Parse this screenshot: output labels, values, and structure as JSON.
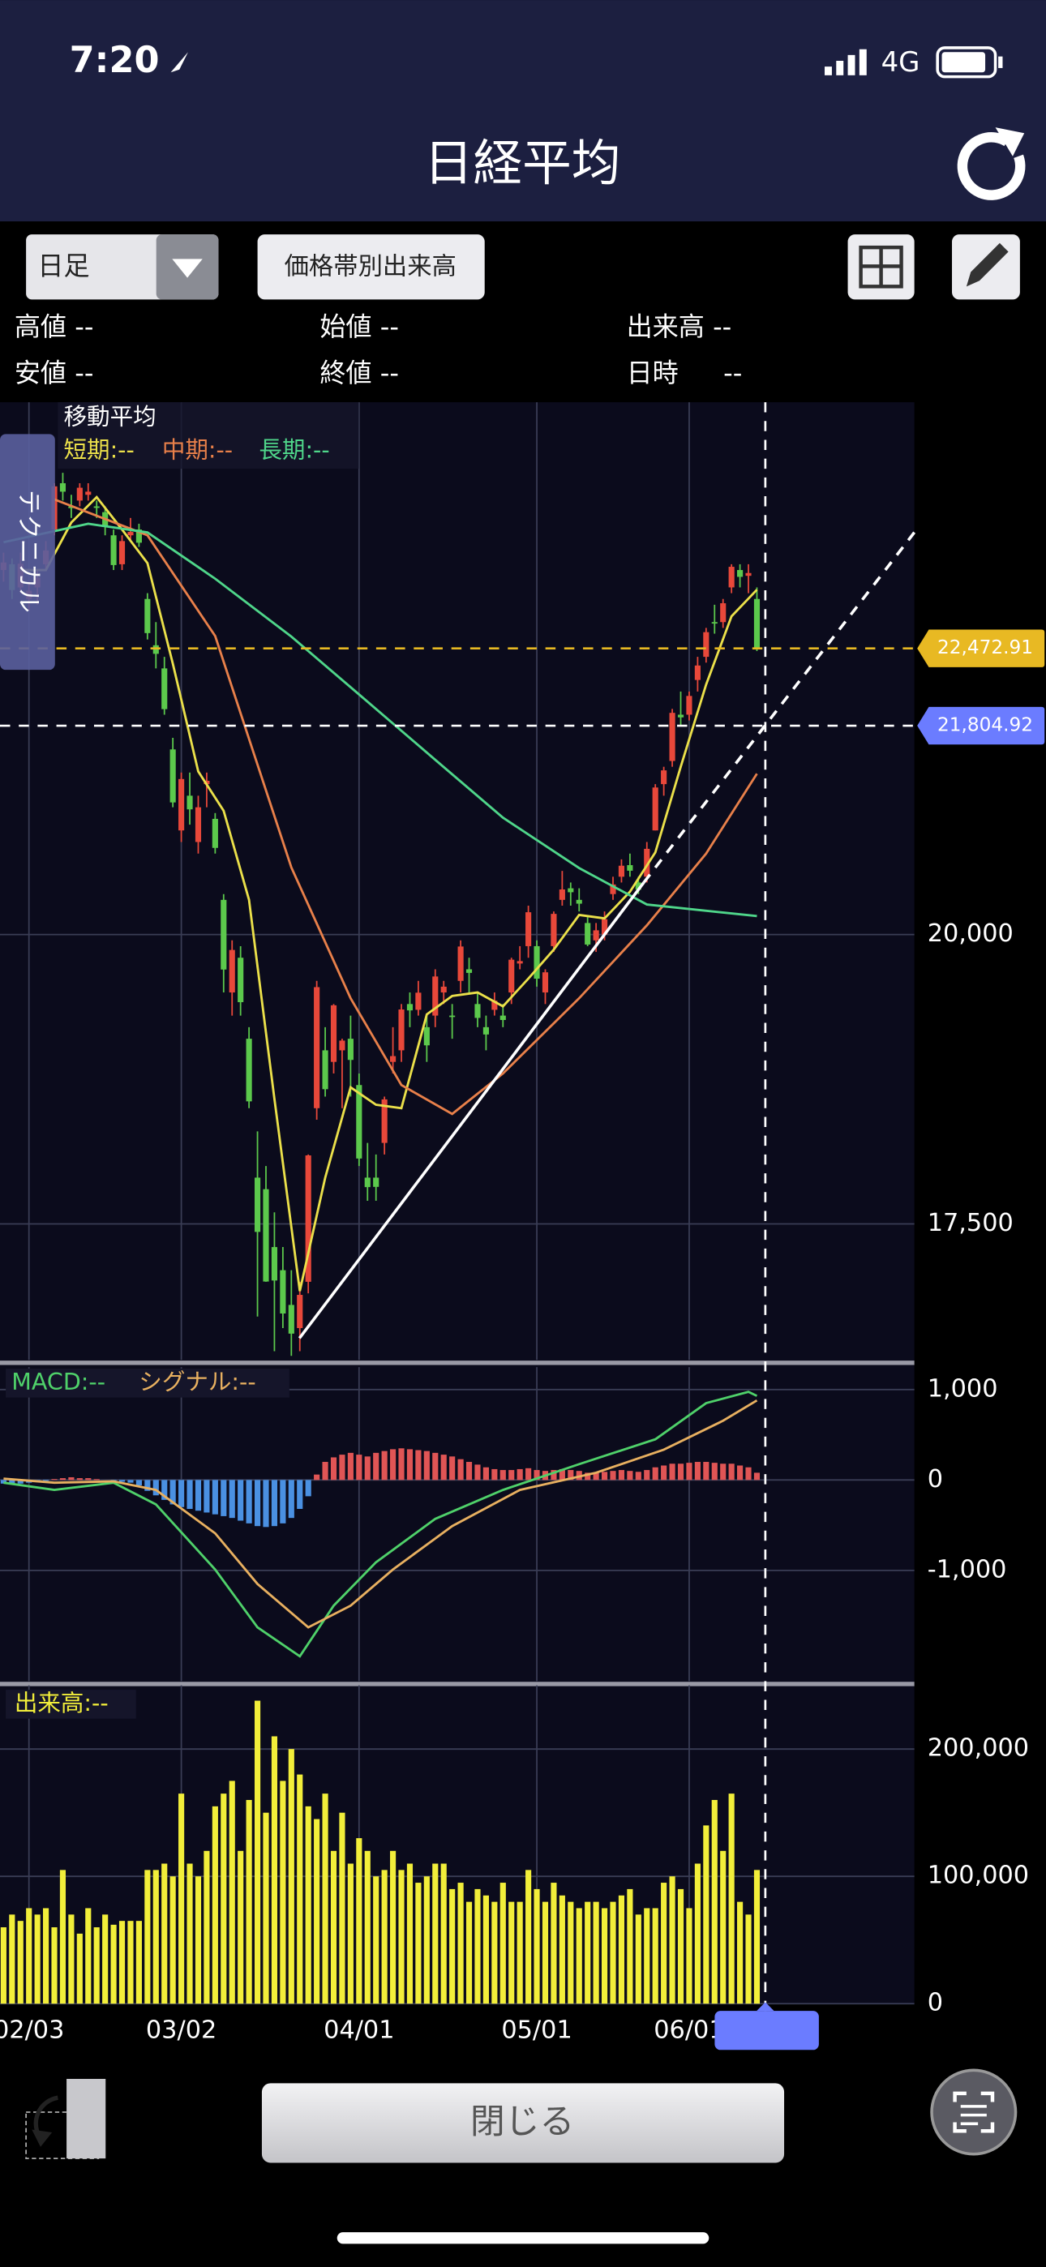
{
  "status": {
    "time": "7:20",
    "network": "4G"
  },
  "header": {
    "title": "日経平均"
  },
  "toolbar": {
    "period": "日足",
    "volume_profile": "価格帯別出来高"
  },
  "info": [
    "高値 --",
    "始値 --",
    "出来高 --",
    "安値 --",
    "終値 --"
  ],
  "datetime": {
    "label": "日時",
    "value": "--"
  },
  "side_tab": "テクニカル",
  "chart_data": [
    {
      "type": "candlestick",
      "title": "移動平均",
      "xlim": [
        -3.42,
        104.6
      ],
      "ylim": [
        16325,
        24600
      ],
      "yticks": [
        {
          "value": 20000,
          "label": "20,000"
        },
        {
          "value": 17500,
          "label": "17,500"
        }
      ],
      "grid": true,
      "up_color": "#e8483a",
      "down_color": "#5cc94c",
      "x": [
        -3,
        -2,
        -1,
        0,
        1,
        2,
        3,
        4,
        5,
        6,
        7,
        8,
        9,
        10,
        11,
        12,
        13,
        14,
        15,
        16,
        17,
        18,
        19,
        20,
        21,
        22,
        23,
        24,
        25,
        26,
        27,
        28,
        29,
        30,
        31,
        32,
        33,
        34,
        35,
        36,
        37,
        38,
        39,
        40,
        41,
        42,
        43,
        44,
        45,
        46,
        47,
        48,
        49,
        50,
        51,
        52,
        53,
        54,
        55,
        56,
        57,
        58,
        59,
        60,
        61,
        62,
        63,
        64,
        65,
        66,
        67,
        68,
        69,
        70,
        71,
        72,
        73,
        74,
        75,
        76,
        77,
        78,
        79,
        80,
        81,
        82,
        83,
        84,
        85,
        86
      ],
      "open": [
        23150,
        23200,
        23000,
        22900,
        23000,
        23200,
        23500,
        23900,
        23700,
        23750,
        23800,
        23700,
        23650,
        23450,
        23200,
        23450,
        23500,
        22900,
        22500,
        22300,
        21600,
        20900,
        21200,
        20800,
        21300,
        21000,
        20300,
        19500,
        19800,
        19100,
        17900,
        17800,
        17300,
        17100,
        16800,
        16600,
        17000,
        18500,
        19000,
        18900,
        19000,
        19100,
        18700,
        17900,
        17900,
        18200,
        18900,
        19000,
        19400,
        19350,
        19200,
        19300,
        19500,
        19300,
        19600,
        19700,
        19400,
        19200,
        19350,
        19300,
        19500,
        19750,
        19900,
        19900,
        19500,
        19900,
        20300,
        20400,
        20300,
        20100,
        19950,
        20000,
        20350,
        20500,
        20600,
        20450,
        20500,
        20900,
        21300,
        21500,
        21900,
        21900,
        22200,
        22400,
        22700,
        22700,
        23000,
        23150,
        23100,
        22900
      ],
      "high": [
        23300,
        23250,
        23300,
        23050,
        23150,
        23400,
        23900,
        23990,
        23800,
        23900,
        23900,
        23750,
        23700,
        23500,
        23450,
        23600,
        23550,
        22950,
        22700,
        22400,
        21700,
        21400,
        21400,
        21200,
        21400,
        21050,
        20350,
        19950,
        19900,
        19200,
        18300,
        18000,
        17600,
        17300,
        17100,
        17000,
        18100,
        19600,
        19200,
        19400,
        19100,
        19300,
        18800,
        18200,
        18100,
        18600,
        19200,
        19400,
        19500,
        19600,
        19300,
        19700,
        19600,
        19400,
        19950,
        19800,
        19500,
        19300,
        19500,
        19400,
        19800,
        19900,
        20250,
        19950,
        19700,
        20200,
        20550,
        20450,
        20400,
        20150,
        20100,
        20200,
        20500,
        20650,
        20700,
        20500,
        20800,
        21300,
        21450,
        21950,
        22100,
        22100,
        22400,
        22650,
        22850,
        22900,
        23200,
        23200,
        23200,
        23000
      ],
      "low": [
        23050,
        22900,
        22950,
        22800,
        22850,
        23150,
        23450,
        23750,
        23600,
        23700,
        23750,
        23600,
        23450,
        23150,
        23150,
        23400,
        23350,
        22550,
        22300,
        21900,
        21100,
        20800,
        20950,
        20700,
        21100,
        20700,
        19500,
        19300,
        19300,
        18500,
        16700,
        17000,
        16400,
        16600,
        16360,
        16400,
        16900,
        18400,
        18600,
        18800,
        18500,
        18600,
        18000,
        17700,
        17700,
        18100,
        18800,
        18900,
        19200,
        19300,
        18900,
        19200,
        19400,
        19100,
        19500,
        19500,
        19200,
        19000,
        19300,
        19200,
        19400,
        19700,
        19800,
        19550,
        19400,
        19850,
        20250,
        20250,
        20200,
        19900,
        19850,
        19950,
        20300,
        20450,
        20500,
        20350,
        20450,
        20900,
        21200,
        21450,
        21800,
        21850,
        22100,
        22350,
        22600,
        22650,
        22950,
        23000,
        22950,
        22450
      ],
      "close": [
        23215,
        22977,
        23205,
        22971,
        23084,
        23319,
        23873,
        23827,
        23685,
        23861,
        23827,
        23687,
        23523,
        23193,
        23400,
        23479,
        23386,
        22605,
        22426,
        21948,
        21142,
        21344,
        21082,
        21100,
        21329,
        20749,
        19698,
        19867,
        19416,
        18559,
        17431,
        17002,
        17011,
        16726,
        16552,
        16887,
        18092,
        19546,
        18664,
        19389,
        19084,
        18917,
        18065,
        17818,
        17820,
        18576,
        18950,
        19353,
        19345,
        19498,
        19043,
        19638,
        19550,
        19290,
        19897,
        19669,
        19280,
        19137,
        19429,
        19262,
        19783,
        19771,
        20193,
        19619,
        19674,
        20179,
        20390,
        20366,
        20267,
        19914,
        20037,
        20133,
        20433,
        20595,
        20552,
        20388,
        20741,
        21271,
        21419,
        21916,
        21877,
        22062,
        22325,
        22613,
        22695,
        22863,
        23178,
        23091,
        23124,
        22472.91
      ],
      "series": [
        {
          "name": "短期:--",
          "color": "#ebe04a",
          "x": [
            -1,
            2,
            5,
            8,
            11,
            14,
            17,
            20,
            23,
            26,
            29,
            32,
            35,
            38,
            41,
            44,
            47,
            50,
            53,
            56,
            59,
            62,
            65,
            68,
            71,
            74,
            77,
            80,
            83,
            86
          ],
          "values": [
            23150,
            23150,
            23560,
            23780,
            23500,
            23210,
            22340,
            21410,
            21070,
            20300,
            18580,
            16920,
            17900,
            18680,
            18530,
            18500,
            19310,
            19470,
            19500,
            19380,
            19620,
            19870,
            20170,
            20140,
            20370,
            20710,
            21450,
            22160,
            22750,
            22980
          ]
        },
        {
          "name": "中期:--",
          "color": "#e8804a",
          "x": [
            3,
            14,
            22,
            31,
            38,
            44,
            50,
            56,
            65,
            73,
            80,
            86
          ],
          "values": [
            23760,
            23450,
            22580,
            20580,
            19450,
            18700,
            18450,
            18800,
            19450,
            20080,
            20700,
            21390
          ]
        },
        {
          "name": "長期:--",
          "color": "#4fd68a",
          "x": [
            -3,
            7,
            14,
            22,
            31,
            39,
            48,
            56,
            65,
            73,
            86
          ],
          "values": [
            23390,
            23550,
            23475,
            23075,
            22575,
            22075,
            21510,
            21010,
            20575,
            20260,
            20160
          ]
        }
      ],
      "markers": [
        {
          "value": 22472.91,
          "label": "22,472.91",
          "color": "#e8b923"
        },
        {
          "value": 21804.92,
          "label": "21,804.92",
          "color": "#6b7cff"
        }
      ]
    },
    {
      "type": "macd",
      "xlim": [
        -3.42,
        104.6
      ],
      "ylim": [
        -2224,
        1248
      ],
      "yticks": [
        {
          "value": 1000,
          "label": "1,000"
        },
        0,
        {
          "value": -1000,
          "label": "-1,000"
        }
      ],
      "series": [
        {
          "name": "MACD:--",
          "color": "#4fd16a",
          "x": [
            -3,
            3,
            10,
            15,
            22,
            27,
            32,
            36,
            41,
            48,
            56,
            65,
            74,
            80,
            85,
            86
          ],
          "values": [
            -30,
            -110,
            -30,
            -270,
            -990,
            -1630,
            -1950,
            -1390,
            -910,
            -430,
            -110,
            175,
            450,
            850,
            975,
            930
          ]
        },
        {
          "name": "シグナル:--",
          "color": "#e8b060",
          "x": [
            -3,
            3,
            10,
            15,
            22,
            27,
            33,
            38,
            43,
            50,
            58,
            67,
            75,
            82,
            86
          ],
          "values": [
            15,
            -30,
            -15,
            -110,
            -590,
            -1150,
            -1630,
            -1390,
            -990,
            -510,
            -110,
            80,
            335,
            655,
            880
          ]
        }
      ],
      "histogram": {
        "positive_color": "#e05555",
        "negative_color": "#4a90e2",
        "values": [
          -40,
          -50,
          -40,
          -30,
          -20,
          -10,
          10,
          20,
          30,
          20,
          20,
          10,
          0,
          -10,
          -20,
          -30,
          -60,
          -120,
          -170,
          -220,
          -270,
          -300,
          -320,
          -340,
          -360,
          -380,
          -400,
          -420,
          -450,
          -480,
          -510,
          -520,
          -510,
          -480,
          -420,
          -320,
          -180,
          60,
          200,
          250,
          280,
          300,
          280,
          260,
          300,
          320,
          340,
          350,
          340,
          330,
          320,
          300,
          280,
          260,
          230,
          200,
          170,
          140,
          120,
          110,
          110,
          120,
          130,
          110,
          100,
          110,
          120,
          110,
          100,
          80,
          80,
          90,
          100,
          110,
          100,
          90,
          110,
          140,
          160,
          180,
          180,
          190,
          200,
          200,
          190,
          180,
          180,
          160,
          140,
          80
        ]
      }
    },
    {
      "type": "bar",
      "title": "出来高:--",
      "color": "#f2ee3a",
      "xlim": [
        -3.42,
        104.6
      ],
      "ylim": [
        0,
        250000
      ],
      "yticks": [
        {
          "value": 200000,
          "label": "200,000"
        },
        {
          "value": 100000,
          "label": "100,000"
        },
        0
      ],
      "xticks": [
        {
          "value": 0,
          "label": "02/03"
        },
        {
          "value": 18,
          "label": "03/02"
        },
        {
          "value": 39,
          "label": "04/01"
        },
        {
          "value": 60,
          "label": "05/01"
        },
        {
          "value": 78,
          "label": "06/01"
        }
      ],
      "values": [
        60000,
        70000,
        65000,
        75000,
        70000,
        75000,
        60000,
        105000,
        70000,
        55000,
        75000,
        60000,
        70000,
        62000,
        65000,
        65000,
        65000,
        105000,
        105000,
        110000,
        100000,
        165000,
        110000,
        100000,
        120000,
        155000,
        165000,
        175000,
        120000,
        160000,
        238000,
        150000,
        210000,
        175000,
        200000,
        180000,
        155000,
        145000,
        165000,
        120000,
        150000,
        110000,
        130000,
        120000,
        100000,
        105000,
        120000,
        105000,
        110000,
        95000,
        100000,
        110000,
        110000,
        90000,
        95000,
        80000,
        90000,
        85000,
        80000,
        95000,
        80000,
        80000,
        105000,
        90000,
        80000,
        95000,
        85000,
        80000,
        75000,
        80000,
        80000,
        75000,
        80000,
        85000,
        90000,
        70000,
        75000,
        75000,
        95000,
        100000,
        90000,
        75000,
        110000,
        140000,
        160000,
        120000,
        165000,
        80000,
        70000,
        105000
      ]
    }
  ],
  "footer": {
    "close": "閉じる"
  }
}
